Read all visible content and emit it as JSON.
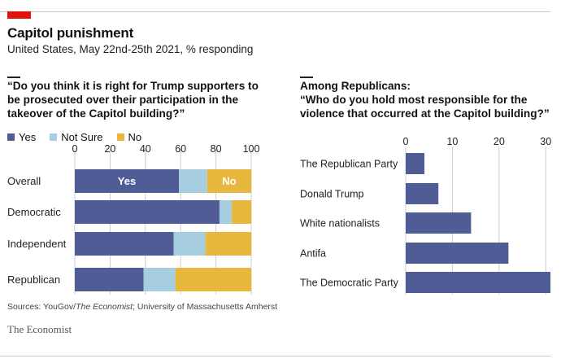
{
  "header": {
    "title": "Capitol punishment",
    "subtitle": "United States, May 22nd-25th 2021, % responding"
  },
  "left_panel": {
    "question_lines": [
      "“Do you think it is right for Trump supporters to",
      "be prosecuted over their participation in the",
      "takeover of the Capitol building?”"
    ],
    "legend": [
      "Yes",
      "Not Sure",
      "No"
    ]
  },
  "right_panel": {
    "lines": [
      "Among Republicans:",
      "“Who do you hold most responsible for the",
      "violence that occurred at the Capitol building?”"
    ]
  },
  "colors": {
    "yes": "#4f5c96",
    "not_sure": "#a6cde0",
    "no": "#e8b83e",
    "bar": "#4f5c96",
    "grid": "#cccccc"
  },
  "chart_data": [
    {
      "type": "bar",
      "orientation": "horizontal",
      "stacked": true,
      "categories": [
        "Overall",
        "Democratic",
        "Independent",
        "Republican"
      ],
      "series": [
        {
          "name": "Yes",
          "values": [
            59,
            82,
            56,
            39
          ]
        },
        {
          "name": "Not Sure",
          "values": [
            16,
            7,
            18,
            18
          ]
        },
        {
          "name": "No",
          "values": [
            25,
            11,
            26,
            43
          ]
        }
      ],
      "xlim": [
        0,
        100
      ],
      "xticks": [
        0,
        20,
        40,
        60,
        80,
        100
      ],
      "inbar_labels": [
        {
          "category": "Overall",
          "series": "Yes",
          "text": "Yes"
        },
        {
          "category": "Overall",
          "series": "No",
          "text": "No"
        }
      ],
      "title": "“Do you think it is right for Trump supporters to be prosecuted over their participation in the takeover of the Capitol building?”"
    },
    {
      "type": "bar",
      "orientation": "horizontal",
      "categories": [
        "The Republican Party",
        "Donald Trump",
        "White nationalists",
        "Antifa",
        "The Democratic Party"
      ],
      "values": [
        4,
        7,
        14,
        22,
        31
      ],
      "xlim": [
        0,
        31
      ],
      "xticks": [
        0,
        10,
        20,
        30
      ],
      "title": "Among Republicans: “Who do you hold most responsible for the violence that occurred at the Capitol building?”"
    }
  ],
  "footer": {
    "source_prefix": "Sources: YouGov/",
    "source_italic": "The Economist",
    "source_suffix": "; University of Massachusetts Amherst",
    "brand": "The Economist"
  }
}
